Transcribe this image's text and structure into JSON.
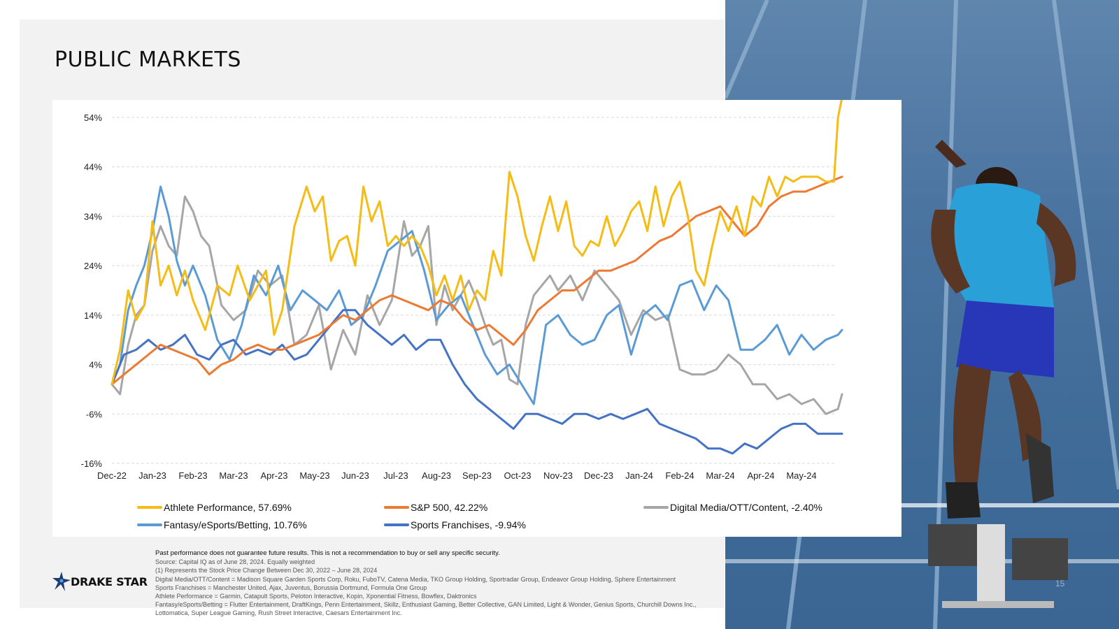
{
  "slide": {
    "title": "PUBLIC MARKETS",
    "page_number": "15",
    "logo_text": "DRAKE STAR"
  },
  "colors": {
    "athlete": "#f4bc14",
    "sp500": "#ec7a32",
    "digital": "#a6a6a6",
    "fantasy": "#5b9bd5",
    "sports": "#4472c4"
  },
  "chart_data": {
    "type": "line",
    "y_ticks": [
      "54%",
      "44%",
      "34%",
      "24%",
      "14%",
      "4%",
      "-6%",
      "-16%"
    ],
    "x_ticks": [
      "Dec-22",
      "Jan-23",
      "Feb-23",
      "Mar-23",
      "Apr-23",
      "May-23",
      "Jun-23",
      "Jul-23",
      "Aug-23",
      "Sep-23",
      "Oct-23",
      "Nov-23",
      "Dec-23",
      "Jan-24",
      "Feb-24",
      "Mar-24",
      "Apr-24",
      "May-24"
    ],
    "ylim": [
      -16,
      54
    ],
    "x_range": [
      0,
      18.1
    ],
    "grid": true,
    "legend_position": "bottom",
    "series": [
      {
        "name": "Athlete Performance, 57.69%",
        "color": "#f4bc14",
        "x": [
          0,
          0.2,
          0.4,
          0.6,
          0.8,
          1.0,
          1.2,
          1.4,
          1.6,
          1.8,
          2.0,
          2.3,
          2.6,
          2.9,
          3.1,
          3.4,
          3.6,
          3.8,
          4.0,
          4.2,
          4.5,
          4.8,
          5.0,
          5.2,
          5.4,
          5.6,
          5.8,
          6.0,
          6.2,
          6.4,
          6.6,
          6.8,
          7.0,
          7.2,
          7.4,
          7.6,
          7.8,
          8.0,
          8.2,
          8.4,
          8.6,
          8.8,
          9.0,
          9.2,
          9.4,
          9.6,
          9.8,
          10.0,
          10.2,
          10.4,
          10.6,
          10.8,
          11.0,
          11.2,
          11.4,
          11.6,
          11.8,
          12.0,
          12.2,
          12.4,
          12.6,
          12.8,
          13.0,
          13.2,
          13.4,
          13.6,
          13.8,
          14.0,
          14.2,
          14.4,
          14.6,
          14.8,
          15.0,
          15.2,
          15.4,
          15.6,
          15.8,
          16.0,
          16.2,
          16.4,
          16.6,
          16.8,
          17.0,
          17.2,
          17.4,
          17.6,
          17.8,
          17.9,
          18.0
        ],
        "values": [
          0,
          7,
          19,
          13,
          16,
          33,
          20,
          24,
          18,
          23,
          17,
          11,
          20,
          18,
          24,
          17,
          20,
          23,
          10,
          15,
          32,
          40,
          35,
          38,
          25,
          29,
          30,
          24,
          40,
          33,
          37,
          28,
          30,
          28,
          30,
          28,
          24,
          18,
          22,
          17,
          22,
          15,
          19,
          17,
          27,
          22,
          43,
          38,
          30,
          25,
          32,
          38,
          31,
          37,
          28,
          26,
          29,
          28,
          34,
          28,
          31,
          35,
          37,
          31,
          40,
          32,
          38,
          41,
          34,
          23,
          20,
          28,
          35,
          31,
          36,
          30,
          38,
          36,
          42,
          38,
          42,
          41,
          42,
          42,
          42,
          41,
          41,
          54,
          58
        ]
      },
      {
        "name": "S&P 500, 42.22%",
        "color": "#ec7a32",
        "x": [
          0,
          0.3,
          0.6,
          0.9,
          1.2,
          1.5,
          1.8,
          2.1,
          2.4,
          2.7,
          3.0,
          3.3,
          3.6,
          3.9,
          4.2,
          4.5,
          4.8,
          5.1,
          5.4,
          5.7,
          6.0,
          6.3,
          6.6,
          6.9,
          7.2,
          7.5,
          7.8,
          8.1,
          8.4,
          8.7,
          9.0,
          9.3,
          9.6,
          9.9,
          10.2,
          10.5,
          10.8,
          11.1,
          11.4,
          11.7,
          12.0,
          12.3,
          12.6,
          12.9,
          13.2,
          13.5,
          13.8,
          14.1,
          14.4,
          14.7,
          15.0,
          15.3,
          15.6,
          15.9,
          16.2,
          16.5,
          16.8,
          17.1,
          17.4,
          17.7,
          18.0
        ],
        "values": [
          0,
          2,
          4,
          6,
          8,
          7,
          6,
          5,
          2,
          4,
          5,
          7,
          8,
          7,
          7,
          8,
          9,
          10,
          12,
          14,
          13,
          15,
          17,
          18,
          17,
          16,
          15,
          17,
          16,
          13,
          11,
          12,
          10,
          8,
          11,
          15,
          17,
          19,
          19,
          21,
          23,
          23,
          24,
          25,
          27,
          29,
          30,
          32,
          34,
          35,
          36,
          33,
          30,
          32,
          36,
          38,
          39,
          39,
          40,
          41,
          42
        ]
      },
      {
        "name": "Digital Media/OTT/Content, -2.40%",
        "color": "#a6a6a6",
        "x": [
          0,
          0.2,
          0.4,
          0.6,
          0.8,
          1.0,
          1.2,
          1.4,
          1.6,
          1.8,
          2.0,
          2.2,
          2.4,
          2.7,
          3.0,
          3.3,
          3.6,
          3.9,
          4.2,
          4.5,
          4.8,
          5.1,
          5.4,
          5.7,
          6.0,
          6.3,
          6.6,
          6.9,
          7.2,
          7.4,
          7.6,
          7.8,
          8.0,
          8.2,
          8.4,
          8.6,
          8.8,
          9.0,
          9.2,
          9.4,
          9.6,
          9.8,
          10.0,
          10.2,
          10.4,
          10.6,
          10.8,
          11.0,
          11.3,
          11.6,
          11.9,
          12.2,
          12.5,
          12.8,
          13.1,
          13.4,
          13.7,
          14.0,
          14.3,
          14.6,
          14.9,
          15.2,
          15.5,
          15.8,
          16.1,
          16.4,
          16.7,
          17.0,
          17.3,
          17.6,
          17.9,
          18.0
        ],
        "values": [
          0,
          -2,
          8,
          14,
          16,
          27,
          32,
          28,
          26,
          38,
          35,
          30,
          28,
          16,
          13,
          15,
          23,
          20,
          22,
          8,
          10,
          16,
          3,
          11,
          6,
          18,
          12,
          17,
          33,
          26,
          28,
          32,
          12,
          20,
          15,
          18,
          21,
          17,
          12,
          8,
          9,
          1,
          0,
          12,
          18,
          20,
          22,
          19,
          22,
          17,
          23,
          20,
          17,
          10,
          15,
          13,
          14,
          3,
          2,
          2,
          3,
          6,
          4,
          0,
          0,
          -3,
          -2,
          -4,
          -3,
          -6,
          -5,
          -2
        ]
      },
      {
        "name": "Fantasy/eSports/Betting, 10.76%",
        "color": "#5b9bd5",
        "x": [
          0,
          0.2,
          0.4,
          0.6,
          0.8,
          1.0,
          1.2,
          1.4,
          1.6,
          1.8,
          2.0,
          2.3,
          2.6,
          2.9,
          3.2,
          3.5,
          3.8,
          4.1,
          4.4,
          4.7,
          5.0,
          5.3,
          5.6,
          5.9,
          6.2,
          6.5,
          6.8,
          7.1,
          7.4,
          7.7,
          8.0,
          8.3,
          8.6,
          8.9,
          9.2,
          9.5,
          9.8,
          10.1,
          10.4,
          10.7,
          11.0,
          11.3,
          11.6,
          11.9,
          12.2,
          12.5,
          12.8,
          13.1,
          13.4,
          13.7,
          14.0,
          14.3,
          14.6,
          14.9,
          15.2,
          15.5,
          15.8,
          16.1,
          16.4,
          16.7,
          17.0,
          17.3,
          17.6,
          17.9,
          18.0
        ],
        "values": [
          0,
          4,
          15,
          20,
          24,
          31,
          40,
          34,
          25,
          20,
          24,
          18,
          9,
          5,
          12,
          22,
          18,
          24,
          15,
          19,
          17,
          15,
          19,
          12,
          14,
          20,
          27,
          29,
          31,
          23,
          13,
          16,
          18,
          12,
          6,
          2,
          4,
          0,
          -4,
          12,
          14,
          10,
          8,
          9,
          14,
          16,
          6,
          14,
          16,
          13,
          20,
          21,
          15,
          20,
          17,
          7,
          7,
          9,
          12,
          6,
          10,
          7,
          9,
          10,
          11
        ]
      },
      {
        "name": "Sports Franchises, -9.94%",
        "color": "#4472c4",
        "x": [
          0,
          0.3,
          0.6,
          0.9,
          1.2,
          1.5,
          1.8,
          2.1,
          2.4,
          2.7,
          3.0,
          3.3,
          3.6,
          3.9,
          4.2,
          4.5,
          4.8,
          5.1,
          5.4,
          5.7,
          6.0,
          6.3,
          6.6,
          6.9,
          7.2,
          7.5,
          7.8,
          8.1,
          8.4,
          8.7,
          9.0,
          9.3,
          9.6,
          9.9,
          10.2,
          10.5,
          10.8,
          11.1,
          11.4,
          11.7,
          12.0,
          12.3,
          12.6,
          12.9,
          13.2,
          13.5,
          13.8,
          14.1,
          14.4,
          14.7,
          15.0,
          15.3,
          15.6,
          15.9,
          16.2,
          16.5,
          16.8,
          17.1,
          17.4,
          17.7,
          18.0
        ],
        "values": [
          0,
          6,
          7,
          9,
          7,
          8,
          10,
          6,
          5,
          8,
          9,
          6,
          7,
          6,
          8,
          5,
          6,
          9,
          12,
          15,
          15,
          12,
          10,
          8,
          10,
          7,
          9,
          9,
          4,
          0,
          -3,
          -5,
          -7,
          -9,
          -6,
          -6,
          -7,
          -8,
          -6,
          -6,
          -7,
          -6,
          -7,
          -6,
          -5,
          -8,
          -9,
          -10,
          -11,
          -13,
          -13,
          -14,
          -12,
          -13,
          -11,
          -9,
          -8,
          -8,
          -10,
          -10,
          -10
        ]
      }
    ]
  },
  "footnotes": {
    "disclaimer": "Past performance does not guarantee future results. This is not a recommendation to buy or sell any specific security.",
    "source": "Source: Capital IQ as of June 28, 2024. Equally weighted",
    "note1": "(1) Represents the Stock Price Change Between Dec 30, 2022 – June 28, 2024",
    "digital": "Digital Media/OTT/Content = Madison Square Garden Sports Corp, Roku, FuboTV, Catena Media, TKO Group Holding, Sportradar Group, Endeavor Group Holding, Sphere Entertainment",
    "sports": "Sports Franchises = Manchester United, Ajax, Juventus, Borussia Dortmund, Formula One Group",
    "athlete": "Athlete Performance = Garmin, Catapult Sports, Peloton Interactive, Kopin, Xponential Fitness, Bowflex, Daktronics",
    "fantasy": "Fantasy/eSports/Betting = Flutter Entertainment, DraftKings, Penn Entertainment, Skillz, Enthusiast Gaming, Better Collective, GAN Limited, Light & Wonder, Genius Sports, Churchill Downs Inc., Lottomatica, Super League Gaming, Rush Street Interactive, Caesars Entertainment Inc."
  }
}
